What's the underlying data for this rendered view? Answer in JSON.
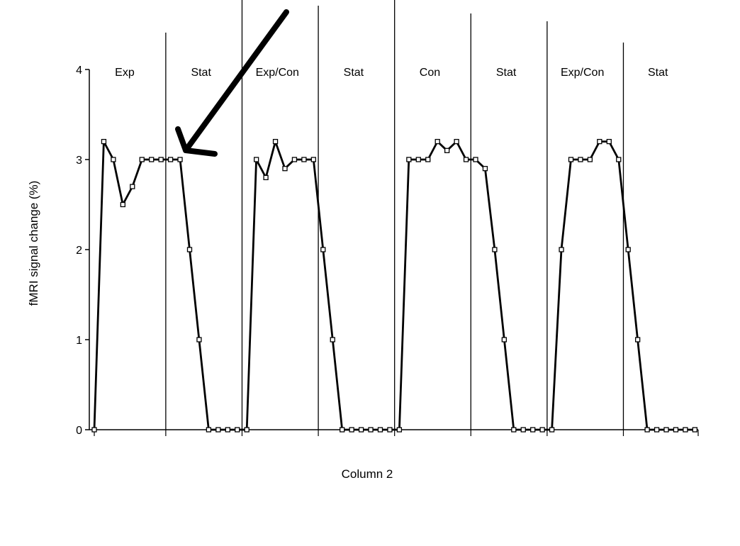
{
  "chart_data": {
    "type": "line",
    "xlabel": "Column 2",
    "ylabel": "fMRI signal change (%)",
    "ylim": [
      0,
      4
    ],
    "yticks": [
      "0",
      "1",
      "2",
      "3",
      "4"
    ],
    "grid": false,
    "legend": "none",
    "phases": [
      "Exp",
      "Stat",
      "Exp/Con",
      "Stat",
      "Con",
      "Stat",
      "Exp/Con",
      "Stat"
    ],
    "points_per_phase": 8,
    "series": [
      {
        "values": [
          0,
          3.2,
          3,
          2.5,
          2.7,
          3,
          3,
          3,
          3,
          3,
          2,
          1,
          0,
          0,
          0,
          0,
          0,
          3,
          2.8,
          3.2,
          2.9,
          3,
          3,
          3,
          2,
          1,
          0,
          0,
          0,
          0,
          0,
          0,
          0,
          3,
          3,
          3,
          3.2,
          3.1,
          3.2,
          3,
          3,
          2.9,
          2,
          1,
          0,
          0,
          0,
          0,
          0,
          2,
          3,
          3,
          3,
          3.2,
          3.2,
          3,
          2,
          1,
          0,
          0,
          0,
          0,
          0,
          0
        ]
      }
    ],
    "annotation": "arrow pointing to the end of the first Exp block",
    "colors": {
      "line": "#000000",
      "marker_fill": "#ffffff",
      "background": "#ffffff"
    }
  }
}
